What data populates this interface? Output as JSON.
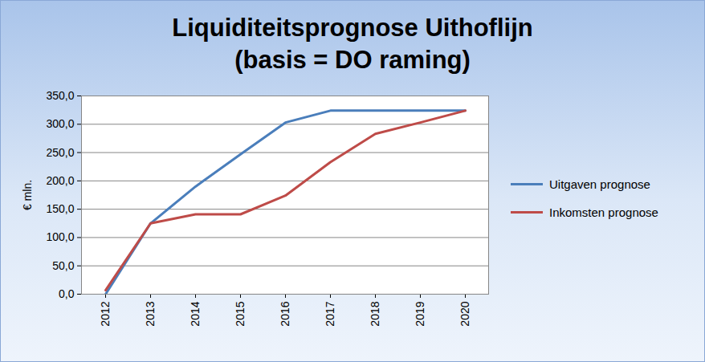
{
  "chart_data": {
    "type": "line",
    "title": "Liquiditeitsprognose Uithoflijn",
    "subtitle": "(basis = DO raming)",
    "y_label": "€ mln.",
    "categories": [
      "2012",
      "2013",
      "2014",
      "2015",
      "2016",
      "2017",
      "2018",
      "2019",
      "2020"
    ],
    "series": [
      {
        "name": "Uitgaven prognose",
        "color": "#4a7ebb",
        "values": [
          0,
          125,
          190,
          247,
          303,
          324,
          324,
          324,
          324
        ]
      },
      {
        "name": "Inkomsten prognose",
        "color": "#be4b48",
        "values": [
          7,
          125,
          141,
          141,
          174,
          233,
          283,
          303,
          324
        ]
      }
    ],
    "ylim": [
      0,
      350
    ],
    "yticks": [
      {
        "value": 0,
        "label": "0,0"
      },
      {
        "value": 50,
        "label": "50,0"
      },
      {
        "value": 100,
        "label": "100,0"
      },
      {
        "value": 150,
        "label": "150,0"
      },
      {
        "value": 200,
        "label": "200,0"
      },
      {
        "value": 250,
        "label": "250,0"
      },
      {
        "value": 300,
        "label": "300,0"
      },
      {
        "value": 350,
        "label": "350,0"
      }
    ],
    "grid": true,
    "legend": "right"
  }
}
